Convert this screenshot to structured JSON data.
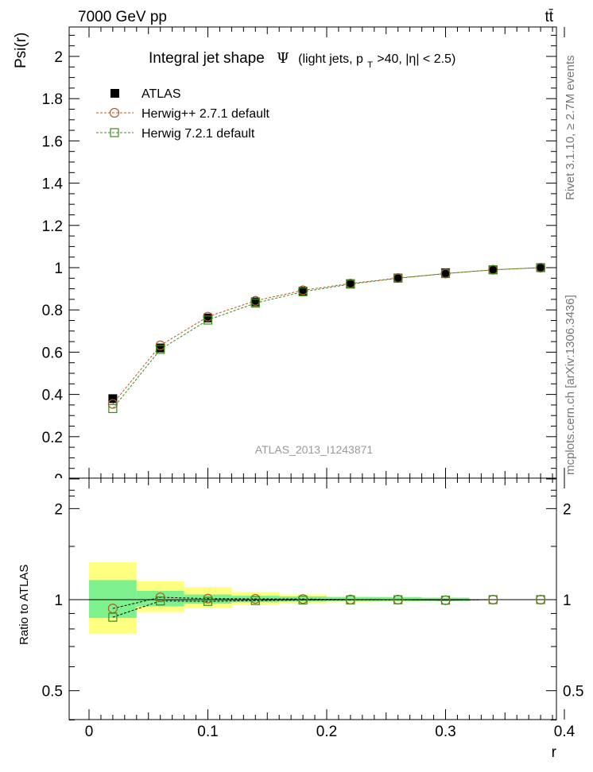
{
  "header": {
    "energy_label": "7000 GeV pp",
    "process_label": "tt̄"
  },
  "side_labels": {
    "rivet": "Rivet 3.1.10, ≥ 2.7M events",
    "mcplots": "mcplots.cern.ch [arXiv:1306.3436]"
  },
  "chart_data": {
    "type": "scatter",
    "title": "Integral jet shape",
    "title_symbol": "Ψ",
    "title_detail": "(light jets, p",
    "title_sub": "T",
    "title_rest": ">40, |η| < 2.5)",
    "analysis_label": "ATLAS_2013_I1243871",
    "ylabel": "Psi(r)",
    "ratio_ylabel": "Ratio to ATLAS",
    "xlabel": "r",
    "xlim": [
      0,
      0.4
    ],
    "ylim": [
      0,
      2.15
    ],
    "ratio_ylim": [
      0.35,
      2.35
    ],
    "x_ticks": [
      "0",
      "0.1",
      "0.2",
      "0.3",
      "0.4"
    ],
    "y_ticks": [
      "0",
      "0.2",
      "0.4",
      "0.6",
      "0.8",
      "1",
      "1.2",
      "1.4",
      "1.6",
      "1.8",
      "2"
    ],
    "ratio_ticks": [
      "0.5",
      "1",
      "2"
    ],
    "x": [
      0.02,
      0.06,
      0.1,
      0.14,
      0.18,
      0.22,
      0.26,
      0.3,
      0.34,
      0.38
    ],
    "series": [
      {
        "name": "ATLAS",
        "color": "#000000",
        "marker": "filled-square",
        "values": [
          0.38,
          0.62,
          0.762,
          0.838,
          0.889,
          0.924,
          0.951,
          0.976,
          0.99,
          1.0
        ]
      },
      {
        "name": "Herwig++ 2.7.1 default",
        "color": "#b85c1e",
        "marker": "open-circle",
        "values": [
          0.355,
          0.632,
          0.768,
          0.843,
          0.893,
          0.925,
          0.951,
          0.972,
          0.99,
          1.0
        ],
        "ratio": [
          0.935,
          1.018,
          1.008,
          1.006,
          1.005,
          1.001,
          1.0,
          0.996,
          1.0,
          1.0
        ]
      },
      {
        "name": "Herwig 7.2.1 default",
        "color": "#3a8a1a",
        "marker": "open-square",
        "values": [
          0.333,
          0.613,
          0.752,
          0.832,
          0.886,
          0.922,
          0.95,
          0.972,
          0.99,
          1.0
        ],
        "ratio": [
          0.875,
          0.99,
          0.987,
          0.993,
          0.997,
          0.998,
          0.999,
          0.996,
          1.0,
          1.0
        ]
      }
    ],
    "ratio_bands": {
      "bins": [
        [
          0.0,
          0.04
        ],
        [
          0.04,
          0.08
        ],
        [
          0.08,
          0.12
        ],
        [
          0.12,
          0.16
        ],
        [
          0.16,
          0.2
        ],
        [
          0.2,
          0.24
        ],
        [
          0.24,
          0.28
        ],
        [
          0.28,
          0.32
        ]
      ],
      "stat": [
        [
          0.87,
          1.16
        ],
        [
          0.95,
          1.07
        ],
        [
          0.97,
          1.04
        ],
        [
          0.98,
          1.03
        ],
        [
          0.985,
          1.025
        ],
        [
          0.99,
          1.02
        ],
        [
          0.99,
          1.02
        ],
        [
          0.99,
          1.015
        ]
      ],
      "total": [
        [
          0.77,
          1.33
        ],
        [
          0.91,
          1.15
        ],
        [
          0.94,
          1.1
        ],
        [
          0.96,
          1.06
        ],
        [
          0.97,
          1.04
        ],
        [
          0.98,
          1.025
        ],
        [
          0.985,
          1.02
        ],
        [
          0.99,
          1.015
        ]
      ],
      "stat_color": "#7ef08e",
      "total_color": "#ffff80"
    },
    "legend_position": "top-left"
  }
}
